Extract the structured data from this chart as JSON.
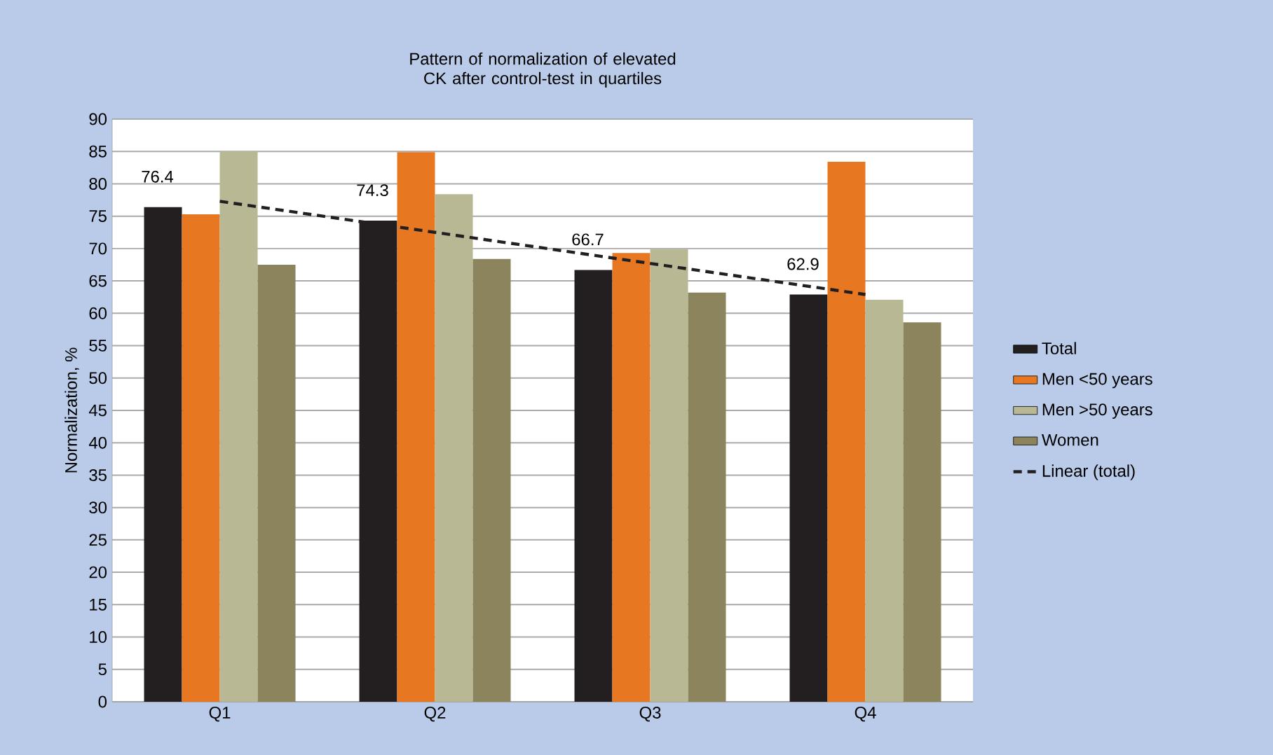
{
  "chart_data": {
    "type": "bar",
    "title": "Pattern of normalization of elevated CK after control-test in quartiles",
    "ylabel": "Normalization, %",
    "categories": [
      "Q1",
      "Q2",
      "Q3",
      "Q4"
    ],
    "series": [
      {
        "name": "Total",
        "color": "#231f20",
        "values": [
          76.4,
          74.3,
          66.7,
          62.9
        ],
        "value_labels": [
          "76.4",
          "74.3",
          "66.7",
          "62.9"
        ]
      },
      {
        "name": "Men <50 years",
        "color": "#e87722",
        "values": [
          75.3,
          84.9,
          69.3,
          83.4
        ]
      },
      {
        "name": "Men >50 years",
        "color": "#b8b994",
        "values": [
          85.0,
          78.4,
          69.9,
          62.1
        ]
      },
      {
        "name": "Women",
        "color": "#8b845c",
        "values": [
          67.5,
          68.4,
          63.2,
          58.6
        ]
      },
      {
        "name": "Linear (total)",
        "type": "line",
        "color": "#231f20",
        "line_style": "dashed",
        "values": [
          77.3,
          72.5,
          67.7,
          62.9
        ]
      }
    ],
    "ylim": [
      0,
      90
    ],
    "yticks": [
      0,
      5,
      10,
      15,
      20,
      25,
      30,
      35,
      40,
      45,
      50,
      55,
      60,
      65,
      70,
      75,
      80,
      85,
      90
    ],
    "grid": "y",
    "legend": "right"
  }
}
